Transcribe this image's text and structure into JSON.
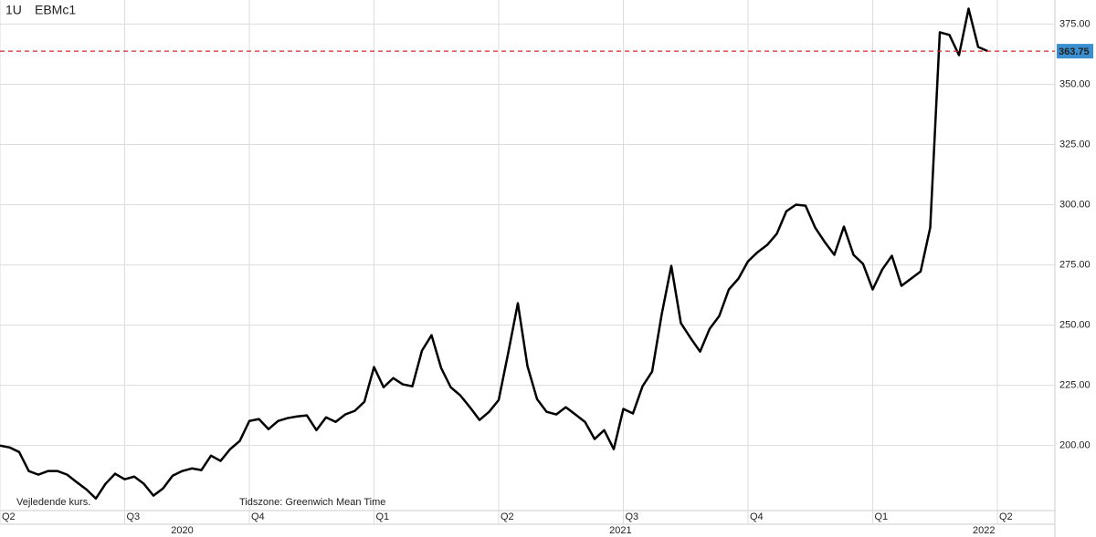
{
  "header": {
    "interval": "1U",
    "symbol": "EBMc1"
  },
  "footer": {
    "note": "Vejledende kurs.",
    "timezone": "Tidszone: Greenwich Mean Time"
  },
  "chart_data": {
    "type": "line",
    "x": [
      0,
      1,
      2,
      3,
      4,
      5,
      6,
      7,
      8,
      9,
      10,
      11,
      12,
      13,
      14,
      15,
      16,
      17,
      18,
      19,
      20,
      21,
      22,
      23,
      24,
      25,
      26,
      27,
      28,
      29,
      30,
      31,
      32,
      33,
      34,
      35,
      36,
      37,
      38,
      39,
      40,
      41,
      42,
      43,
      44,
      45,
      46,
      47,
      48,
      49,
      50,
      51,
      52,
      53,
      54,
      55,
      56,
      57,
      58,
      59,
      60,
      61,
      62,
      63,
      64,
      65,
      66,
      67,
      68,
      69,
      70,
      71,
      72,
      73,
      74,
      75,
      76,
      77,
      78,
      79,
      80,
      81,
      82,
      83,
      84,
      85,
      86,
      87,
      88,
      89,
      90,
      91,
      92,
      93,
      94,
      95,
      96,
      97,
      98,
      99,
      100,
      101,
      102,
      103
    ],
    "series": [
      {
        "color": "#000000",
        "values": [
          200.0,
          199.2,
          197.3,
          189.4,
          187.9,
          189.4,
          189.4,
          187.9,
          184.8,
          181.8,
          178.0,
          184.1,
          188.3,
          186.0,
          187.1,
          184.1,
          179.2,
          182.2,
          187.5,
          189.4,
          190.5,
          189.8,
          195.8,
          193.6,
          198.5,
          201.9,
          210.2,
          211.0,
          206.8,
          210.2,
          211.4,
          212.1,
          212.5,
          206.4,
          211.7,
          209.8,
          212.9,
          214.4,
          218.2,
          232.6,
          224.2,
          228.0,
          225.4,
          224.6,
          239.4,
          245.8,
          232.2,
          224.2,
          220.8,
          215.9,
          210.6,
          214.0,
          218.9,
          238.6,
          259.1,
          233.0,
          219.3,
          214.0,
          212.9,
          215.9,
          212.9,
          209.8,
          202.7,
          206.4,
          198.5,
          215.2,
          213.3,
          224.6,
          230.7,
          254.5,
          274.6,
          250.8,
          244.7,
          239.0,
          248.5,
          253.8,
          264.8,
          269.3,
          276.5,
          280.3,
          283.3,
          287.9,
          297.3,
          300.0,
          299.6,
          290.5,
          284.5,
          279.2,
          290.9,
          279.2,
          275.4,
          264.8,
          273.1,
          278.8,
          266.3,
          269.3,
          272.3,
          290.5,
          371.6,
          370.5,
          362.1,
          381.4,
          365.5,
          363.75
        ]
      }
    ],
    "reference_line": {
      "value": 363.75,
      "color": "#d62728",
      "label_color": "#3a8fd0"
    },
    "xlim": [
      0,
      110
    ],
    "xticks": [
      {
        "value": 0,
        "label": "Q2"
      },
      {
        "value": 13,
        "label": "Q3"
      },
      {
        "value": 26,
        "label": "Q4"
      },
      {
        "value": 39,
        "label": "Q1"
      },
      {
        "value": 52,
        "label": "Q2"
      },
      {
        "value": 65,
        "label": "Q3"
      },
      {
        "value": 78,
        "label": "Q4"
      },
      {
        "value": 91,
        "label": "Q1"
      },
      {
        "value": 104,
        "label": "Q2"
      }
    ],
    "year_ticks": [
      {
        "value": 19,
        "label": "2020"
      },
      {
        "value": 64.7,
        "label": "2021"
      },
      {
        "value": 102.6,
        "label": "2022"
      }
    ],
    "ylim": [
      173,
      385
    ],
    "yticks": [
      {
        "value": 200,
        "label": "200.00"
      },
      {
        "value": 225,
        "label": "225.00"
      },
      {
        "value": 250,
        "label": "250.00"
      },
      {
        "value": 275,
        "label": "275.00"
      },
      {
        "value": 300,
        "label": "300.00"
      },
      {
        "value": 325,
        "label": "325.00"
      },
      {
        "value": 350,
        "label": "350.00"
      },
      {
        "value": 375,
        "label": "375.00"
      }
    ],
    "grid": true
  }
}
